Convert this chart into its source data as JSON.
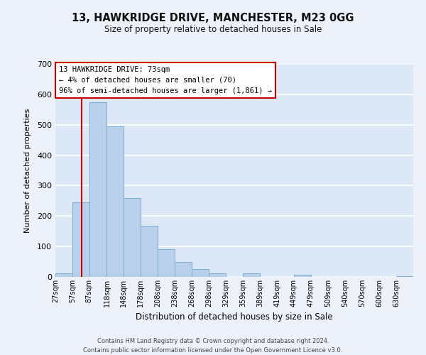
{
  "title": "13, HAWKRIDGE DRIVE, MANCHESTER, M23 0GG",
  "subtitle": "Size of property relative to detached houses in Sale",
  "xlabel": "Distribution of detached houses by size in Sale",
  "ylabel": "Number of detached properties",
  "bar_labels": [
    "27sqm",
    "57sqm",
    "87sqm",
    "118sqm",
    "148sqm",
    "178sqm",
    "208sqm",
    "238sqm",
    "268sqm",
    "298sqm",
    "329sqm",
    "359sqm",
    "389sqm",
    "419sqm",
    "449sqm",
    "479sqm",
    "509sqm",
    "540sqm",
    "570sqm",
    "600sqm",
    "630sqm"
  ],
  "bar_heights": [
    12,
    245,
    575,
    495,
    260,
    168,
    90,
    48,
    25,
    12,
    0,
    12,
    0,
    0,
    7,
    0,
    0,
    0,
    0,
    0,
    3
  ],
  "bar_color": "#b8d0ea",
  "bar_edge_color": "#7aadd4",
  "plot_bg_color": "#dce8f5",
  "fig_bg_color": "#edf2fa",
  "grid_color": "#ffffff",
  "vline_x": 73,
  "vline_color": "#cc0000",
  "annotation_text": "13 HAWKRIDGE DRIVE: 73sqm\n← 4% of detached houses are smaller (70)\n96% of semi-detached houses are larger (1,861) →",
  "annotation_box_facecolor": "#ffffff",
  "annotation_box_edgecolor": "#cc0000",
  "ylim": [
    0,
    700
  ],
  "yticks": [
    0,
    100,
    200,
    300,
    400,
    500,
    600,
    700
  ],
  "bin_edges": [
    27,
    57,
    87,
    118,
    148,
    178,
    208,
    238,
    268,
    298,
    329,
    359,
    389,
    419,
    449,
    479,
    509,
    540,
    570,
    600,
    630,
    660
  ],
  "footer_line1": "Contains HM Land Registry data © Crown copyright and database right 2024.",
  "footer_line2": "Contains public sector information licensed under the Open Government Licence v3.0."
}
